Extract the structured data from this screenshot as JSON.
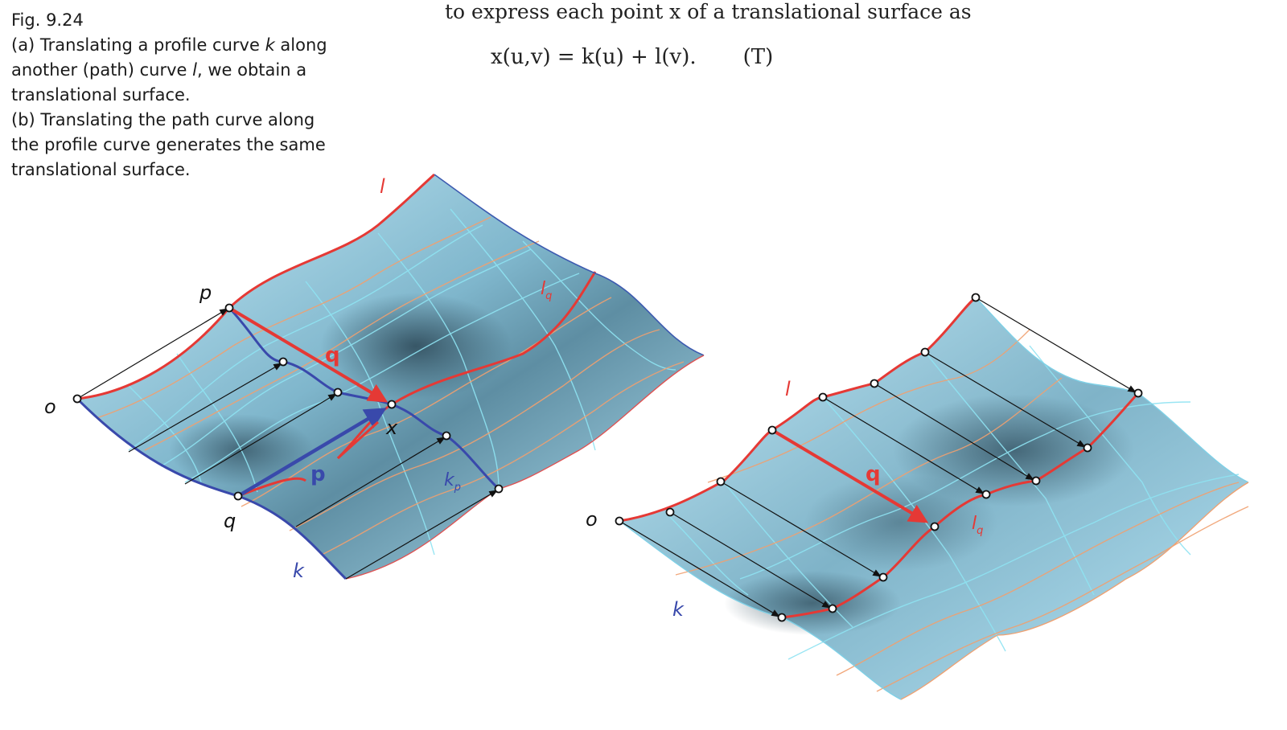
{
  "caption": {
    "fig": "Fig. 9.24",
    "a_line1_pre": "(a) Translating a profile curve ",
    "a_line1_k": "k",
    "a_line1_post": " along",
    "a_line2_pre": "another (path) curve ",
    "a_line2_l": "l",
    "a_line2_post": ", we obtain a",
    "a_line3": "translational surface.",
    "b_line1": "(b) Translating the path curve along",
    "b_line2": "the profile curve generates the same",
    "b_line3": "translational surface."
  },
  "body_text": {
    "intro": "to express each point x of a translational surface as",
    "formula": "x(u,v) = k(u) + l(v).",
    "tag": "(T)"
  },
  "figure_a": {
    "labels": {
      "o": "o",
      "p": "p",
      "q": "q",
      "x": "x",
      "k": "k",
      "l": "l",
      "lq": "l",
      "lq_sub": "q",
      "kp": "k",
      "kp_sub": "p",
      "vec_q": "q",
      "vec_p": "p"
    }
  },
  "figure_b": {
    "labels": {
      "o": "o",
      "l": "l",
      "k": "k",
      "lq": "l",
      "lq_sub": "q",
      "vec_q": "q"
    }
  },
  "colors": {
    "red": "#e53935",
    "blue": "#3949ab",
    "surface": "#9fd8ef",
    "dark": "#2f4a5a"
  }
}
